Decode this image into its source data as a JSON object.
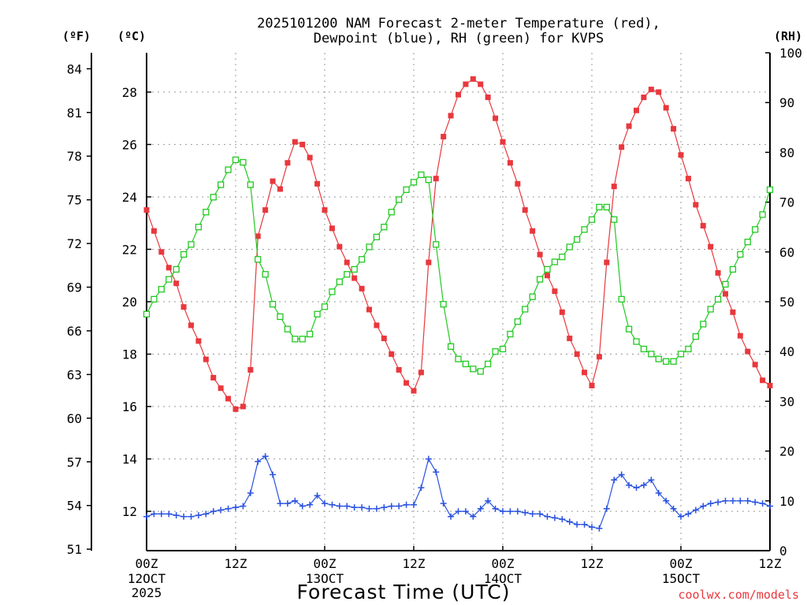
{
  "chart_data": {
    "type": "line",
    "title_line1": "2025101200 NAM Forecast 2-meter Temperature (red),",
    "title_line2": "Dewpoint (blue), RH (green) for KVPS",
    "xlabel": "Forecast Time (UTC)",
    "credit": "coolwx.com/models",
    "units": {
      "fahrenheit": "(ºF)",
      "celsius": "(ºC)",
      "rh": "(RH)"
    },
    "x_range_hours": [
      0,
      84
    ],
    "celsius_range": [
      10.5,
      29.5
    ],
    "fahrenheit_range": [
      51,
      85
    ],
    "rh_range": [
      0,
      100
    ],
    "celsius_ticks": [
      {
        "value": 12,
        "label": "12"
      },
      {
        "value": 14,
        "label": "14"
      },
      {
        "value": 16,
        "label": "16"
      },
      {
        "value": 18,
        "label": "18"
      },
      {
        "value": 20,
        "label": "20"
      },
      {
        "value": 22,
        "label": "22"
      },
      {
        "value": 24,
        "label": "24"
      },
      {
        "value": 26,
        "label": "26"
      },
      {
        "value": 28,
        "label": "28"
      }
    ],
    "fahrenheit_ticks": [
      {
        "value": 51,
        "label": "51"
      },
      {
        "value": 54,
        "label": "54"
      },
      {
        "value": 57,
        "label": "57"
      },
      {
        "value": 60,
        "label": "60"
      },
      {
        "value": 63,
        "label": "63"
      },
      {
        "value": 66,
        "label": "66"
      },
      {
        "value": 69,
        "label": "69"
      },
      {
        "value": 72,
        "label": "72"
      },
      {
        "value": 75,
        "label": "75"
      },
      {
        "value": 78,
        "label": "78"
      },
      {
        "value": 81,
        "label": "81"
      },
      {
        "value": 84,
        "label": "84"
      }
    ],
    "rh_ticks": [
      {
        "value": 0,
        "label": "0"
      },
      {
        "value": 10,
        "label": "10"
      },
      {
        "value": 20,
        "label": "20"
      },
      {
        "value": 30,
        "label": "30"
      },
      {
        "value": 40,
        "label": "40"
      },
      {
        "value": 50,
        "label": "50"
      },
      {
        "value": 60,
        "label": "60"
      },
      {
        "value": 70,
        "label": "70"
      },
      {
        "value": 80,
        "label": "80"
      },
      {
        "value": 90,
        "label": "90"
      },
      {
        "value": 100,
        "label": "100"
      }
    ],
    "x_ticks": [
      {
        "hour": 0,
        "label": "00Z",
        "sub1": "12OCT",
        "sub2": "2025"
      },
      {
        "hour": 12,
        "label": "12Z"
      },
      {
        "hour": 24,
        "label": "00Z",
        "sub1": "13OCT"
      },
      {
        "hour": 36,
        "label": "12Z"
      },
      {
        "hour": 48,
        "label": "00Z",
        "sub1": "14OCT"
      },
      {
        "hour": 60,
        "label": "12Z"
      },
      {
        "hour": 72,
        "label": "00Z",
        "sub1": "15OCT"
      },
      {
        "hour": 84,
        "label": "12Z"
      }
    ],
    "series": [
      {
        "name": "Temperature",
        "axis": "celsius",
        "color": "#e8383d",
        "marker": "filled-square",
        "hours": [
          0,
          1,
          2,
          3,
          4,
          5,
          6,
          7,
          8,
          9,
          10,
          11,
          12,
          13,
          14,
          15,
          16,
          17,
          18,
          19,
          20,
          21,
          22,
          23,
          24,
          25,
          26,
          27,
          28,
          29,
          30,
          31,
          32,
          33,
          34,
          35,
          36,
          37,
          38,
          39,
          40,
          41,
          42,
          43,
          44,
          45,
          46,
          47,
          48,
          49,
          50,
          51,
          52,
          53,
          54,
          55,
          56,
          57,
          58,
          59,
          60,
          61,
          62,
          63,
          64,
          65,
          66,
          67,
          68,
          69,
          70,
          71,
          72,
          73,
          74,
          75,
          76,
          77,
          78,
          79,
          80,
          81,
          82,
          83,
          84
        ],
        "values": [
          23.5,
          22.7,
          21.9,
          21.3,
          20.7,
          19.8,
          19.1,
          18.5,
          17.8,
          17.1,
          16.7,
          16.3,
          15.9,
          16.0,
          17.4,
          22.5,
          23.5,
          24.6,
          24.3,
          25.3,
          26.1,
          26.0,
          25.5,
          24.5,
          23.5,
          22.8,
          22.1,
          21.5,
          20.9,
          20.5,
          19.7,
          19.1,
          18.6,
          18.0,
          17.4,
          16.9,
          16.6,
          17.3,
          21.5,
          24.7,
          26.3,
          27.1,
          27.9,
          28.3,
          28.5,
          28.3,
          27.8,
          27.0,
          26.1,
          25.3,
          24.5,
          23.5,
          22.7,
          21.8,
          21.0,
          20.4,
          19.6,
          18.6,
          18.0,
          17.3,
          16.8,
          17.9,
          21.5,
          24.4,
          25.9,
          26.7,
          27.3,
          27.8,
          28.1,
          28.0,
          27.4,
          26.6,
          25.6,
          24.7,
          23.7,
          22.9,
          22.1,
          21.1,
          20.3,
          19.6,
          18.7,
          18.1,
          17.6,
          17.0,
          16.8
        ]
      },
      {
        "name": "Dewpoint",
        "axis": "celsius",
        "color": "#2a52e0",
        "marker": "plus",
        "hours": [
          0,
          1,
          2,
          3,
          4,
          5,
          6,
          7,
          8,
          9,
          10,
          11,
          12,
          13,
          14,
          15,
          16,
          17,
          18,
          19,
          20,
          21,
          22,
          23,
          24,
          25,
          26,
          27,
          28,
          29,
          30,
          31,
          32,
          33,
          34,
          35,
          36,
          37,
          38,
          39,
          40,
          41,
          42,
          43,
          44,
          45,
          46,
          47,
          48,
          49,
          50,
          51,
          52,
          53,
          54,
          55,
          56,
          57,
          58,
          59,
          60,
          61,
          62,
          63,
          64,
          65,
          66,
          67,
          68,
          69,
          70,
          71,
          72,
          73,
          74,
          75,
          76,
          77,
          78,
          79,
          80,
          81,
          82,
          83,
          84
        ],
        "values": [
          11.8,
          11.9,
          11.9,
          11.9,
          11.85,
          11.8,
          11.8,
          11.85,
          11.9,
          12.0,
          12.05,
          12.1,
          12.15,
          12.2,
          12.7,
          13.9,
          14.1,
          13.4,
          12.3,
          12.3,
          12.4,
          12.2,
          12.25,
          12.6,
          12.3,
          12.25,
          12.2,
          12.2,
          12.15,
          12.15,
          12.1,
          12.1,
          12.15,
          12.2,
          12.2,
          12.25,
          12.25,
          12.9,
          14.0,
          13.5,
          12.3,
          11.8,
          12.0,
          12.0,
          11.8,
          12.1,
          12.4,
          12.1,
          12.0,
          12.0,
          12.0,
          11.95,
          11.9,
          11.9,
          11.8,
          11.75,
          11.7,
          11.6,
          11.5,
          11.5,
          11.4,
          11.35,
          12.1,
          13.2,
          13.4,
          13.0,
          12.9,
          13.0,
          13.2,
          12.7,
          12.4,
          12.1,
          11.8,
          11.9,
          12.05,
          12.2,
          12.3,
          12.35,
          12.4,
          12.4,
          12.4,
          12.4,
          12.35,
          12.3,
          12.2
        ]
      },
      {
        "name": "RH",
        "axis": "rh",
        "color": "#22c922",
        "marker": "open-square",
        "hours": [
          0,
          1,
          2,
          3,
          4,
          5,
          6,
          7,
          8,
          9,
          10,
          11,
          12,
          13,
          14,
          15,
          16,
          17,
          18,
          19,
          20,
          21,
          22,
          23,
          24,
          25,
          26,
          27,
          28,
          29,
          30,
          31,
          32,
          33,
          34,
          35,
          36,
          37,
          38,
          39,
          40,
          41,
          42,
          43,
          44,
          45,
          46,
          47,
          48,
          49,
          50,
          51,
          52,
          53,
          54,
          55,
          56,
          57,
          58,
          59,
          60,
          61,
          62,
          63,
          64,
          65,
          66,
          67,
          68,
          69,
          70,
          71,
          72,
          73,
          74,
          75,
          76,
          77,
          78,
          79,
          80,
          81,
          82,
          83,
          84
        ],
        "values": [
          47.5,
          50.5,
          52.5,
          54.5,
          56.5,
          59.5,
          61.5,
          65.0,
          68.0,
          71.0,
          73.5,
          76.5,
          78.5,
          78.0,
          73.5,
          58.5,
          55.5,
          49.5,
          47.0,
          44.5,
          42.5,
          42.5,
          43.5,
          47.5,
          49.0,
          52.0,
          54.0,
          55.5,
          56.5,
          58.5,
          61.0,
          63.0,
          65.0,
          68.0,
          70.5,
          72.5,
          74.0,
          75.5,
          74.5,
          61.5,
          49.5,
          41.0,
          38.5,
          37.5,
          36.5,
          36.0,
          37.5,
          40.0,
          40.5,
          43.5,
          46.0,
          48.5,
          51.0,
          54.5,
          56.5,
          58.0,
          59.0,
          61.0,
          62.5,
          64.5,
          66.5,
          69.0,
          69.0,
          66.5,
          50.5,
          44.5,
          42.0,
          40.5,
          39.5,
          38.5,
          38.0,
          38.0,
          39.5,
          40.5,
          43.0,
          45.5,
          48.5,
          50.5,
          53.5,
          56.5,
          59.5,
          62.0,
          64.5,
          67.5,
          72.5
        ]
      }
    ]
  }
}
